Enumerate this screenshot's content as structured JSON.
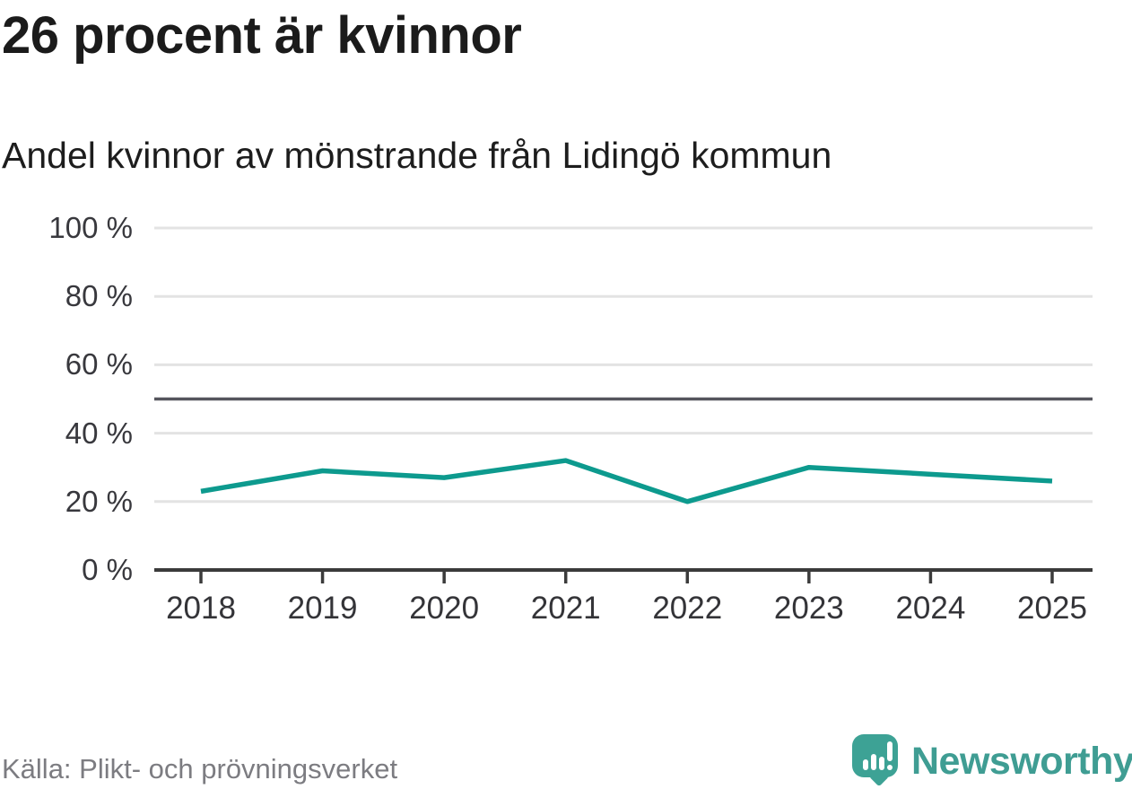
{
  "header": {
    "title": "26 procent är kvinnor",
    "subtitle": "Andel kvinnor av mönstrande från Lidingö kommun"
  },
  "chart_data": {
    "type": "line",
    "title": "26 procent är kvinnor",
    "subtitle": "Andel kvinnor av mönstrande från Lidingö kommun",
    "categories": [
      "2018",
      "2019",
      "2020",
      "2021",
      "2022",
      "2023",
      "2024",
      "2025"
    ],
    "series": [
      {
        "name": "Andel kvinnor av mönstrande",
        "values": [
          23,
          29,
          27,
          32,
          20,
          30,
          28,
          26
        ]
      }
    ],
    "unit": "%",
    "ylim": [
      0,
      100
    ],
    "yticks": [
      0,
      20,
      40,
      60,
      80,
      100
    ],
    "ytick_labels": [
      "0 %",
      "20 %",
      "40 %",
      "60 %",
      "80 %",
      "100 %"
    ],
    "reference_line": 50,
    "grid": true,
    "legend": "none"
  },
  "footer": {
    "source": "Källa: Plikt- och prövningsverket",
    "logo_text": "Newsworthy"
  },
  "colors": {
    "accent": "#0d9a8e",
    "grid": "#e3e3e3",
    "axis": "#3b3b3b",
    "reference_line": "#55555d",
    "logo": "#3f9d93",
    "logo_bubble": "#3da295",
    "background": "#ffffff"
  }
}
